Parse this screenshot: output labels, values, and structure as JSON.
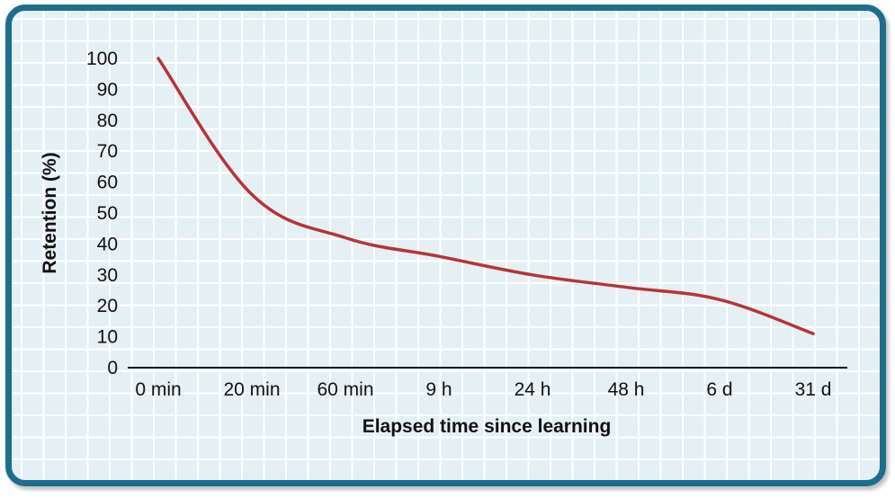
{
  "chart_data": {
    "type": "line",
    "title": "",
    "xlabel": "Elapsed time since learning",
    "ylabel": "Retention (%)",
    "categories": [
      "0 min",
      "20 min",
      "60 min",
      "9 h",
      "24 h",
      "48 h",
      "6 d",
      "31 d"
    ],
    "y_ticks": [
      0,
      10,
      20,
      30,
      40,
      50,
      60,
      70,
      80,
      90,
      100
    ],
    "ylim": [
      0,
      100
    ],
    "grid": true,
    "series": [
      {
        "values": [
          100,
          56,
          42,
          36,
          30,
          26,
          22,
          11
        ],
        "color": "#b5343b"
      }
    ]
  },
  "colors": {
    "frame_border": "#1d6e8c",
    "plot_background": "#e4f0f3",
    "grid": "#ffffff",
    "line": "#b5343b"
  }
}
